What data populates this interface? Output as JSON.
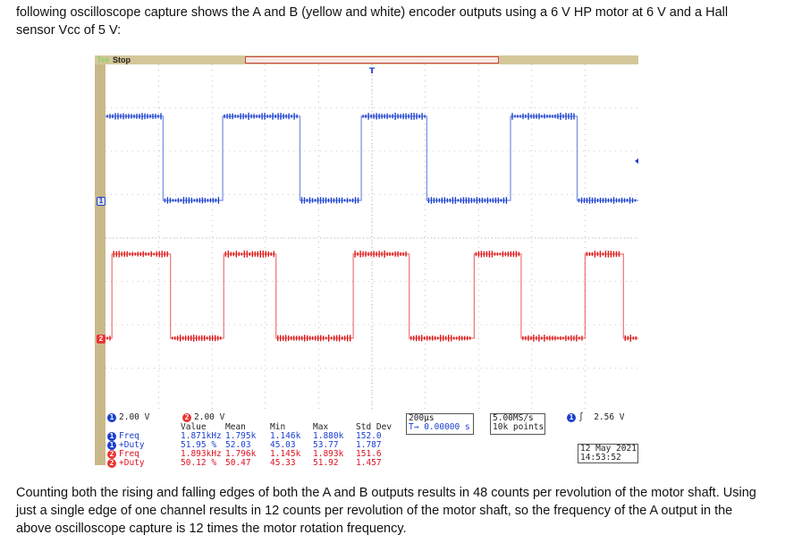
{
  "intro": "following oscilloscope capture shows the A and B (yellow and white) encoder outputs using a 6 V HP motor at 6 V and a Hall sensor Vcc of 5 V:",
  "outro": "Counting both the rising and falling edges of both the A and B outputs results in 48 counts per revolution of the motor shaft. Using just a single edge of one channel results in 12 counts per revolution of the motor shaft, so the frequency of the A output in the above oscilloscope capture is 12 times the motor rotation frequency.",
  "scope": {
    "brand": "Tek",
    "run_state": "Stop",
    "trigger_marker": "T",
    "ch1_marker": "1",
    "ch2_marker": "2",
    "colors": {
      "ch1": "#1a3fd0",
      "ch2": "#e01818",
      "grid": "#9a9a9a"
    },
    "waveforms": {
      "ch1_edges_div": [
        0,
        1.08,
        2.2,
        3.65,
        4.8,
        6.03,
        7.6,
        8.85,
        10
      ],
      "ch1_start_level": "high",
      "ch2_edges_div": [
        0,
        0.12,
        1.22,
        2.22,
        3.2,
        4.65,
        5.7,
        6.92,
        7.8,
        9.0,
        9.72,
        10
      ],
      "ch2_start_level": "low"
    },
    "panel": {
      "ch1_scale": "2.00 V",
      "ch2_scale": "2.00 V",
      "headers": [
        "Value",
        "Mean",
        "Min",
        "Max",
        "Std Dev"
      ],
      "rows": [
        {
          "channel": "1",
          "label": "Freq",
          "values": [
            "1.871kHz",
            "1.795k",
            "1.146k",
            "1.880k",
            "152.0"
          ]
        },
        {
          "channel": "1",
          "label": "+Duty",
          "values": [
            "51.95 %",
            "52.03",
            "45.03",
            "53.77",
            "1.787"
          ]
        },
        {
          "channel": "2",
          "label": "Freq",
          "values": [
            "1.893kHz",
            "1.796k",
            "1.145k",
            "1.893k",
            "151.6"
          ]
        },
        {
          "channel": "2",
          "label": "+Duty",
          "values": [
            "50.12 %",
            "50.47",
            "45.33",
            "51.92",
            "1.457"
          ]
        }
      ],
      "timebase": "200µs",
      "trigger_offset": "0.00000 s",
      "sample_rate": "5.00MS/s",
      "record_length": "10k points",
      "trigger_channel": "1",
      "trigger_slope": "∫",
      "trigger_level": "2.56 V",
      "date": "12 May 2021",
      "time": "14:53:52"
    }
  }
}
